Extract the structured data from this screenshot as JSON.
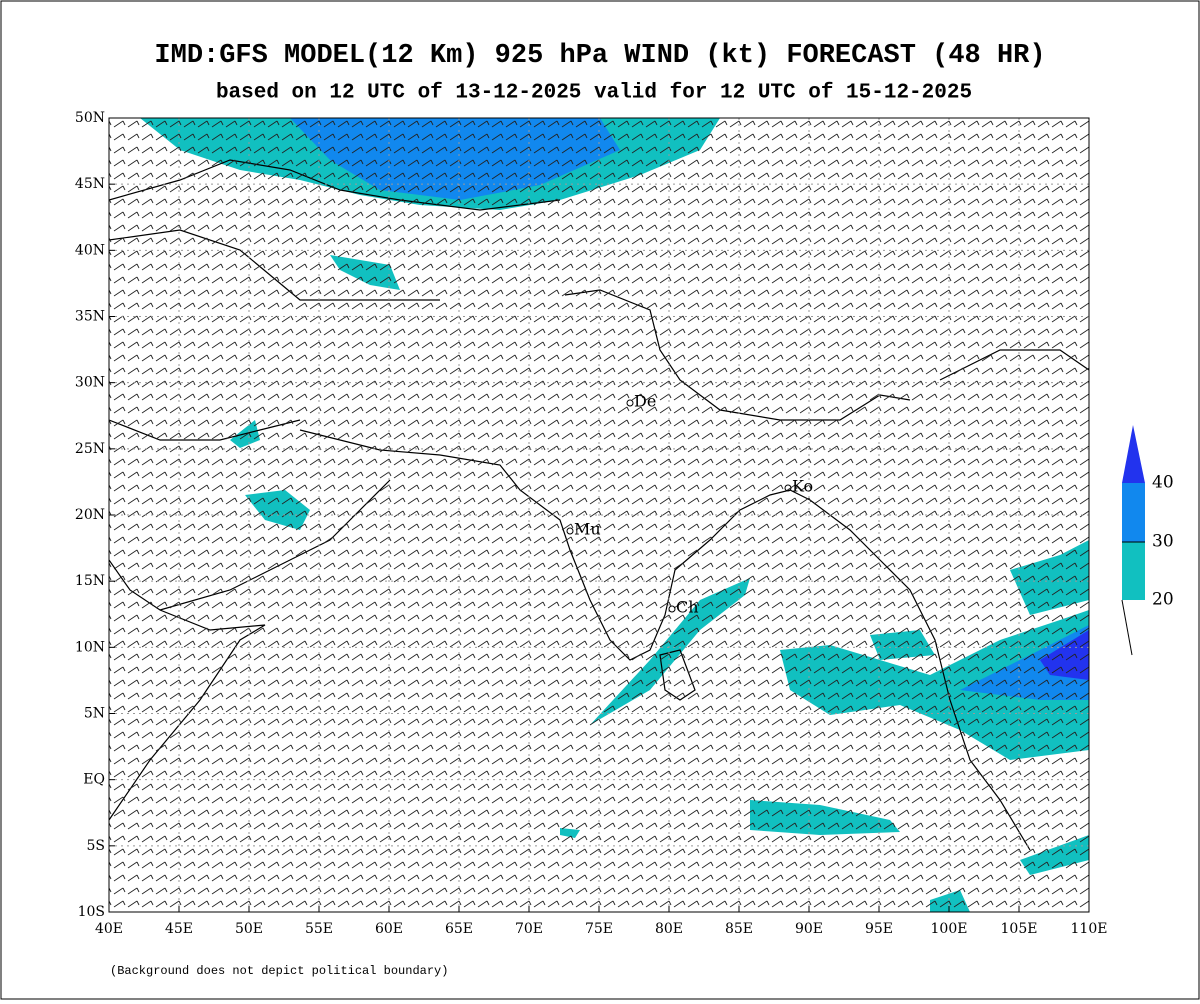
{
  "map": {
    "title": "IMD:GFS MODEL(12 Km) 925 hPa WIND (kt) FORECAST (48 HR)",
    "subtitle": "based on 12 UTC of 13-12-2025 valid for 12 UTC of 15-12-2025",
    "x_ticks": [
      "40E",
      "45E",
      "50E",
      "55E",
      "60E",
      "65E",
      "70E",
      "75E",
      "80E",
      "85E",
      "90E",
      "95E",
      "100E",
      "105E",
      "110E"
    ],
    "y_ticks": [
      "50N",
      "45N",
      "40N",
      "35N",
      "30N",
      "25N",
      "20N",
      "15N",
      "10N",
      "5N",
      "EQ",
      "5S",
      "10S"
    ],
    "cities": [
      "De",
      "Ko",
      "Mu",
      "Ch"
    ],
    "legend": {
      "levels": [
        40,
        30,
        20
      ]
    },
    "footnote": "(Background does not depict political boundary)"
  }
}
